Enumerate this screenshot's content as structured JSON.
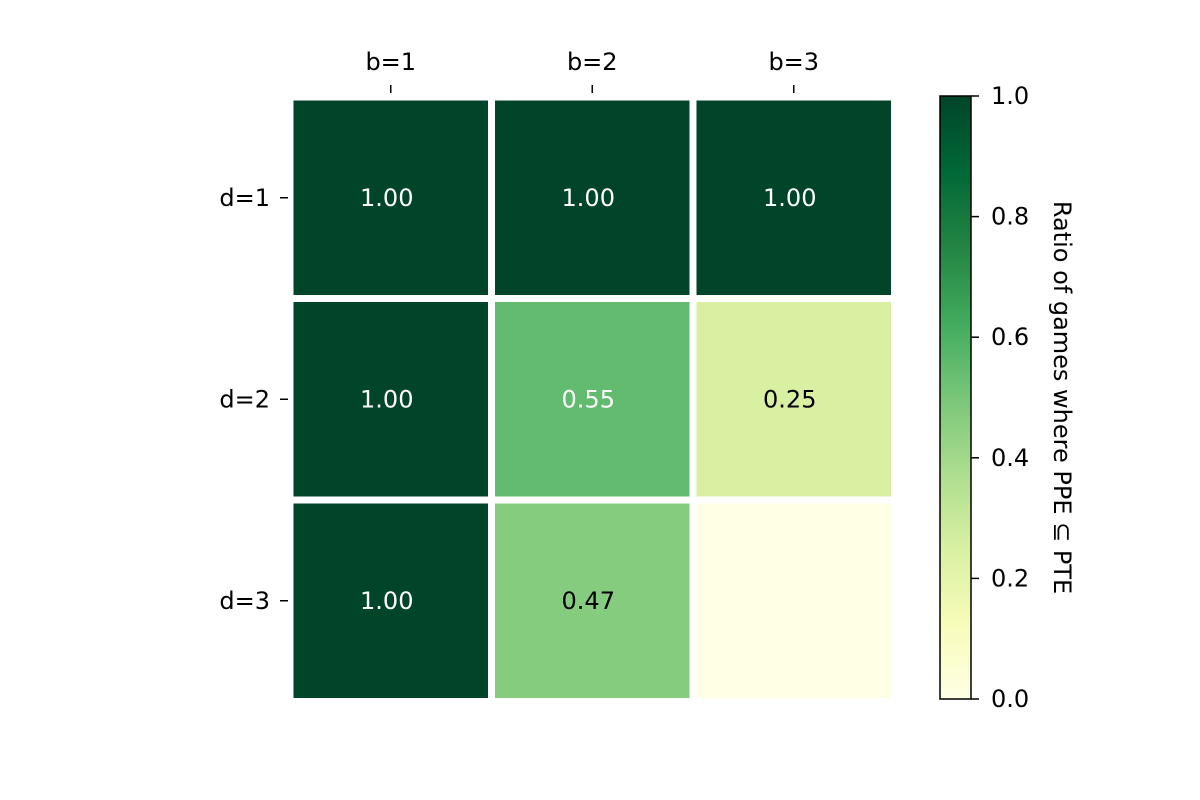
{
  "chart_data": {
    "type": "heatmap",
    "title": "",
    "x_categories": [
      "b=1",
      "b=2",
      "b=3"
    ],
    "y_categories": [
      "d=1",
      "d=2",
      "d=3"
    ],
    "values": [
      [
        1.0,
        1.0,
        1.0
      ],
      [
        1.0,
        0.55,
        0.25
      ],
      [
        1.0,
        0.47,
        0.0
      ]
    ],
    "cell_labels": [
      [
        "1.00",
        "1.00",
        "1.00"
      ],
      [
        "1.00",
        "0.55",
        "0.25"
      ],
      [
        "1.00",
        "0.47",
        ""
      ]
    ],
    "x_axis_position": "top",
    "grid": false,
    "colorbar": {
      "label": "Ratio of games where PPE ⊆ PTE",
      "range": [
        0.0,
        1.0
      ],
      "ticks": [
        0.0,
        0.2,
        0.4,
        0.6,
        0.8,
        1.0
      ],
      "tick_labels": [
        "0.0",
        "0.2",
        "0.4",
        "0.6",
        "0.8",
        "1.0"
      ],
      "colormap": "YlGn",
      "colormap_stops": [
        "#ffffe5",
        "#f7fcb9",
        "#d9f0a3",
        "#addd8e",
        "#78c679",
        "#41ab5d",
        "#238443",
        "#006837",
        "#004529"
      ]
    }
  }
}
